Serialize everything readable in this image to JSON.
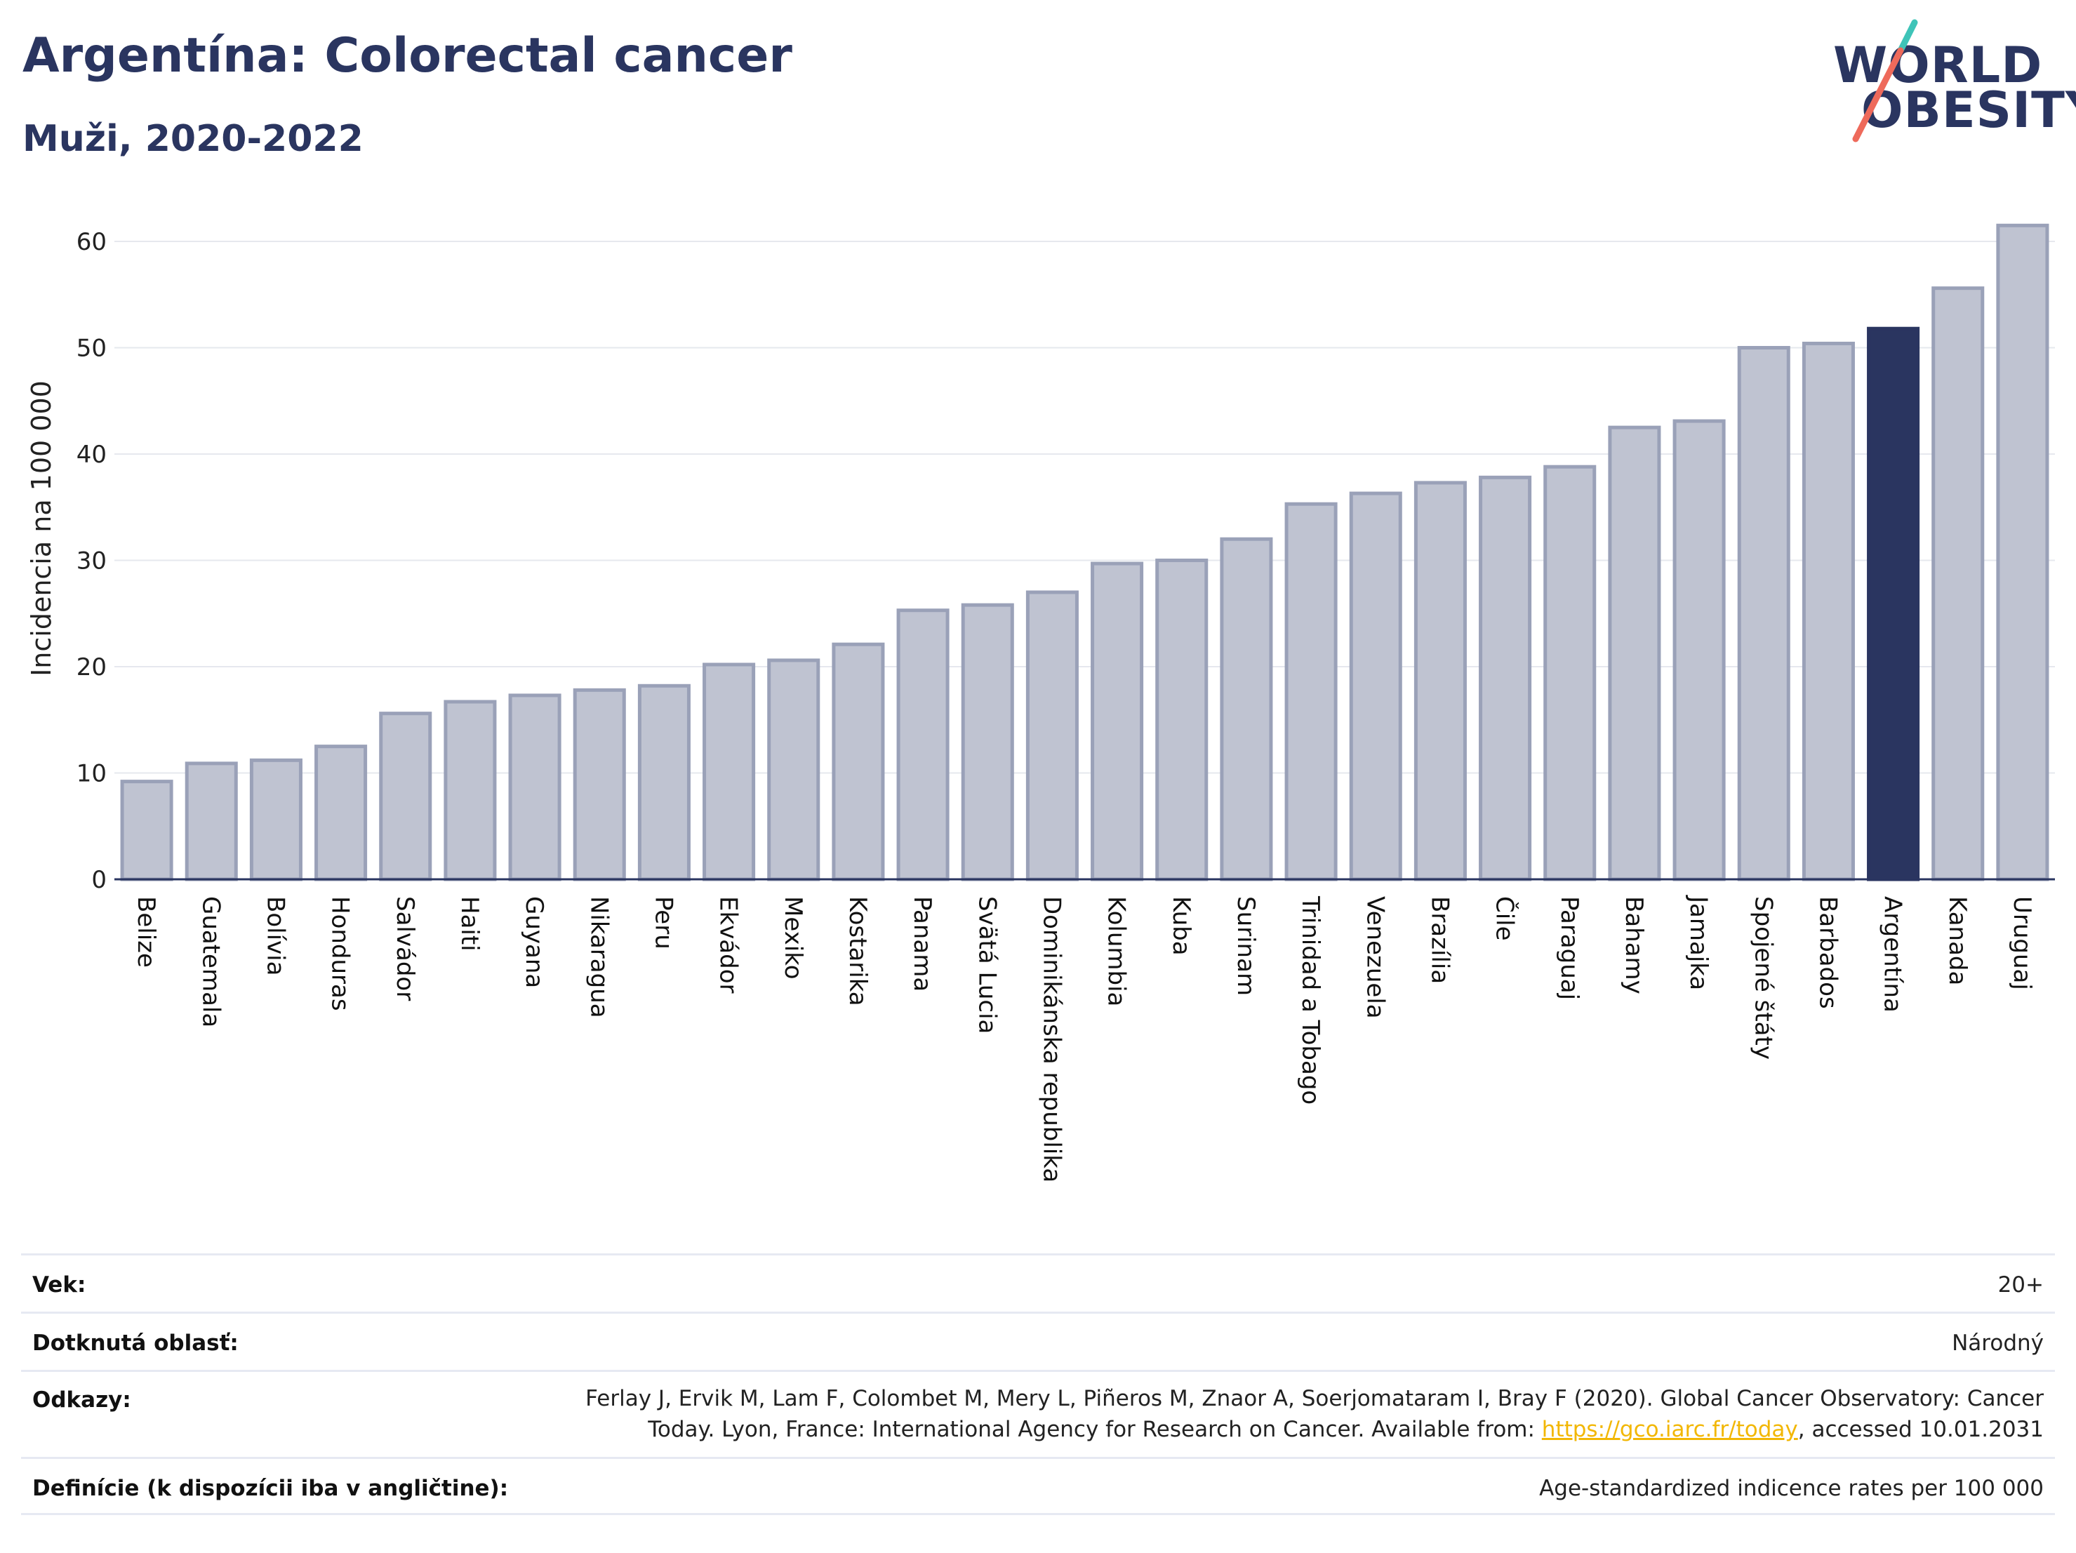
{
  "header": {
    "title": "Argentína: Colorectal cancer",
    "subtitle": "Muži, 2020-2022"
  },
  "logo": {
    "line1": "WORLD",
    "line2": "OBESITY",
    "slash_colors": [
      "#3ec4b8",
      "#ee6a5b"
    ]
  },
  "colors": {
    "bar_default": "#bfc3d1",
    "bar_border": "#9aa1b8",
    "bar_highlight": "#2a3560",
    "text_dark": "#2a3560",
    "link": "#f2b705"
  },
  "chart_data": {
    "type": "bar",
    "ylabel": "Incidencia na 100 000",
    "ylim": [
      0,
      65
    ],
    "yticks": [
      0,
      10,
      20,
      30,
      40,
      50,
      60
    ],
    "grid": true,
    "highlight": "Argentína",
    "categories": [
      "Belize",
      "Guatemala",
      "Bolívia",
      "Honduras",
      "Salvádor",
      "Haiti",
      "Guyana",
      "Nikaragua",
      "Peru",
      "Ekvádor",
      "Mexiko",
      "Kostarika",
      "Panama",
      "Svätá Lucia",
      "Dominikánska republika",
      "Kolumbia",
      "Kuba",
      "Surinam",
      "Trinidad a Tobago",
      "Venezuela",
      "Brazília",
      "Čile",
      "Paraguaj",
      "Bahamy",
      "Jamajka",
      "Spojené štáty",
      "Barbados",
      "Argentína",
      "Kanada",
      "Uruguaj"
    ],
    "values": [
      9.2,
      10.9,
      11.2,
      12.5,
      15.6,
      16.7,
      17.3,
      17.8,
      18.2,
      20.2,
      20.6,
      22.1,
      25.3,
      25.8,
      27.0,
      29.7,
      30.0,
      32.0,
      35.3,
      36.3,
      37.3,
      37.8,
      38.8,
      42.5,
      43.1,
      50.0,
      50.4,
      51.8,
      55.6,
      61.5
    ]
  },
  "info": {
    "age_label": "Vek:",
    "age_value": "20+",
    "area_label": "Dotknutá oblasť:",
    "area_value": "Národný",
    "refs_label": "Odkazy:",
    "refs_line1": "Ferlay J, Ervik M, Lam F, Colombet M, Mery L, Piñeros M, Znaor A, Soerjomataram I, Bray F (2020). Global Cancer Observatory: Cancer",
    "refs_line2_pre": "Today. Lyon, France: International Agency for Research on Cancer. Available from: ",
    "refs_link": "https://gco.iarc.fr/today",
    "refs_line2_post": ", accessed 10.01.2031",
    "def_label": "Definície (k dispozícii iba v angličtine):",
    "def_value": "Age-standardized indicence rates per 100 000"
  }
}
